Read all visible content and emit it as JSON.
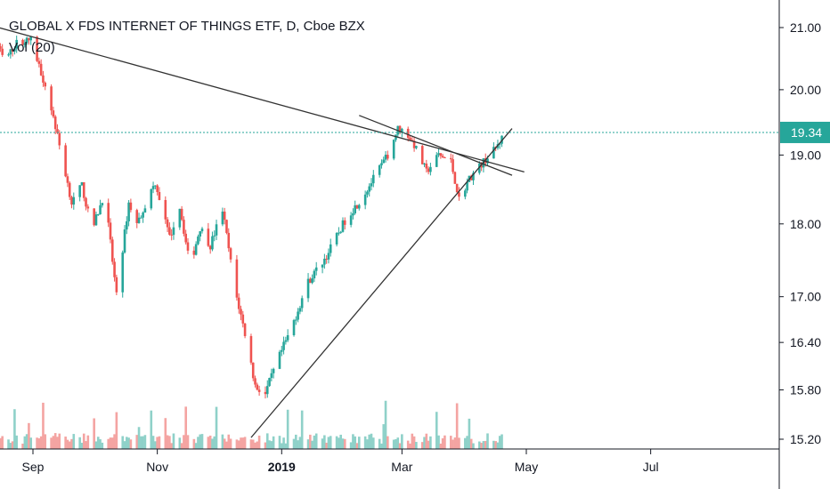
{
  "chart_data": {
    "type": "candlestick",
    "title": "GLOBAL X FDS INTERNET OF THINGS ETF, D, Cboe BZX",
    "indicator_label": "Vol (20)",
    "last_price": 19.34,
    "y_ticks": [
      21.0,
      20.0,
      19.0,
      18.0,
      17.0,
      16.4,
      15.8,
      15.2
    ],
    "y_tick_labels": [
      "21.00",
      "20.00",
      "19.00",
      "18.00",
      "17.00",
      "16.40",
      "15.80",
      "15.20"
    ],
    "last_price_label": "19.34",
    "x_ticks": [
      {
        "label": "Sep",
        "bold": false
      },
      {
        "label": "Nov",
        "bold": false
      },
      {
        "label": "2019",
        "bold": true
      },
      {
        "label": "Mar",
        "bold": false
      },
      {
        "label": "May",
        "bold": false
      },
      {
        "label": "Jul",
        "bold": false
      }
    ],
    "trendlines": [
      {
        "from": [
          "2018-08-13",
          21.02
        ],
        "to": [
          "2019-04-30",
          18.75
        ]
      },
      {
        "from": [
          "2019-02-08",
          19.6
        ],
        "to": [
          "2019-04-24",
          18.7
        ]
      },
      {
        "from": [
          "2018-12-17",
          15.22
        ],
        "to": [
          "2019-04-24",
          19.4
        ]
      }
    ],
    "colors": {
      "up": "#26a69a",
      "down": "#ef5350",
      "vol_up": "#8fd1c9",
      "vol_down": "#f4a4a2",
      "trendline": "#333333",
      "price_line": "#26a69a"
    },
    "grid": false
  }
}
